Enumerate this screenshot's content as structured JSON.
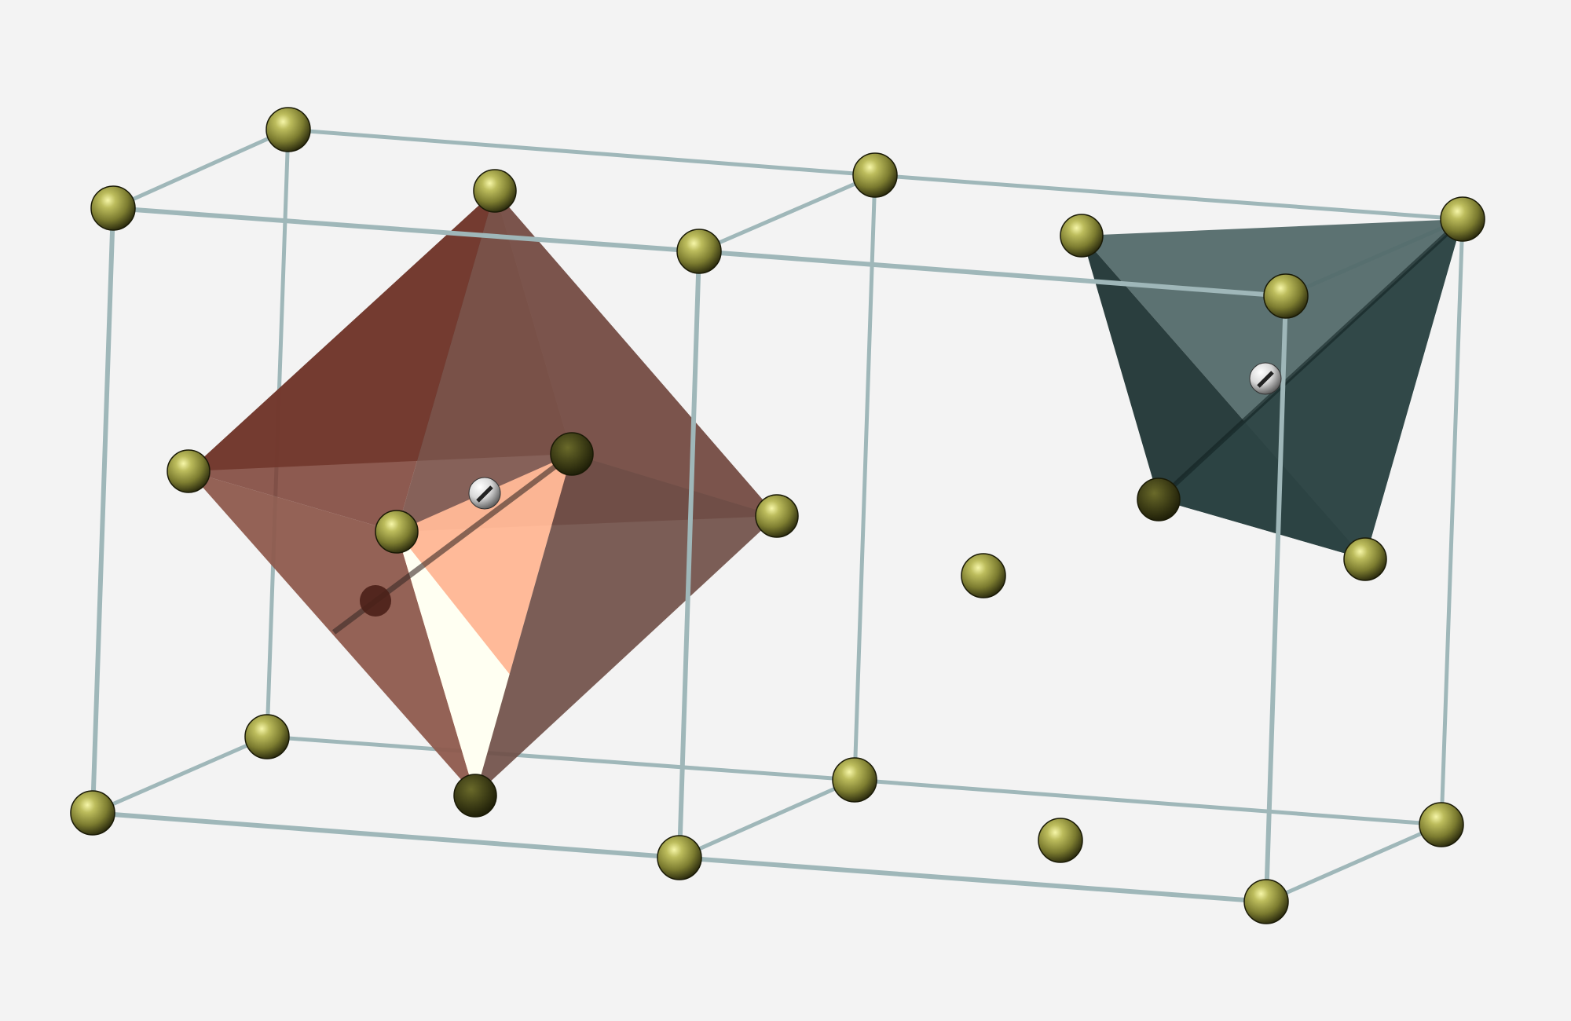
{
  "figure": {
    "subject": "crystal-structure",
    "colors": {
      "background": "#f3f3f3",
      "cell_edge": "#9fb7b9",
      "cell_edge_dark": "#6b8588",
      "lattice_atom": "#8a8a3a",
      "lattice_atom_highlight": "#f2f29a",
      "lattice_atom_shadow": "#2e2e10",
      "interstitial_atom": "#e6e6e6",
      "octahedron_dark": "#4a1e16",
      "octahedron_mid": "#7b5048",
      "octahedron_light": "#ffb896",
      "octahedron_white": "#fffff2",
      "octahedron_side": "#5a4a46",
      "tetrahedron_light": "#526a6a",
      "tetrahedron_dark": "#1f3535"
    },
    "items": {
      "unit_cells": 2,
      "octahedral_site": "octahedral-interstitial-site",
      "tetrahedral_site": "tetrahedral-interstitial-site"
    }
  }
}
